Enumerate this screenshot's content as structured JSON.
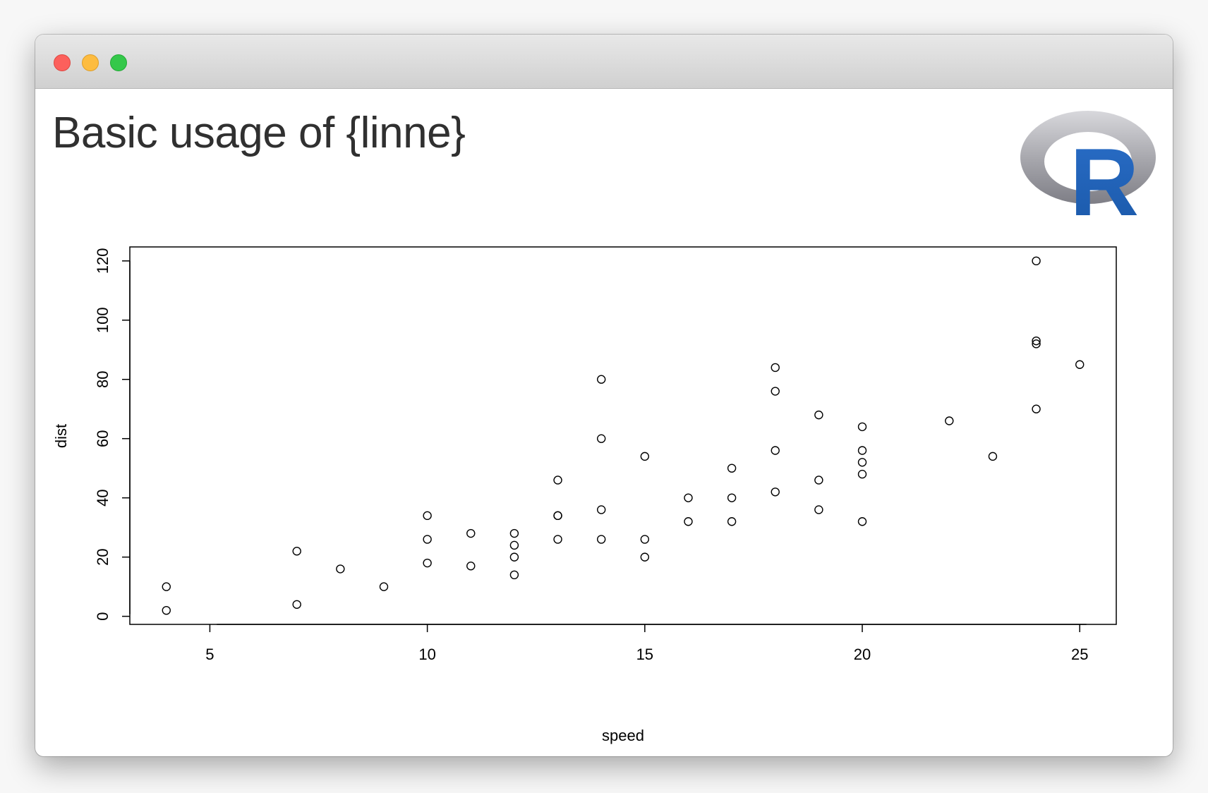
{
  "window": {
    "title": "Basic usage of {linne}",
    "logo": {
      "icon": "r-logo-icon",
      "text": "R",
      "colors": {
        "ring": "#a0a0a6",
        "letter": "#1f62b8"
      }
    },
    "traffic_lights": {
      "close": "#fc605c",
      "minimize": "#fdbc40",
      "maximize": "#34c84a"
    }
  },
  "chart_data": {
    "type": "scatter",
    "title": "",
    "xlabel": "speed",
    "ylabel": "dist",
    "xlim": [
      3.16,
      25.84
    ],
    "ylim": [
      -2.72,
      124.72
    ],
    "xticks": [
      5,
      10,
      15,
      20,
      25
    ],
    "yticks": [
      0,
      20,
      40,
      60,
      80,
      100,
      120
    ],
    "grid": false,
    "marker": "open-circle",
    "points": [
      [
        4,
        2
      ],
      [
        4,
        10
      ],
      [
        7,
        4
      ],
      [
        7,
        22
      ],
      [
        8,
        16
      ],
      [
        9,
        10
      ],
      [
        10,
        18
      ],
      [
        10,
        26
      ],
      [
        10,
        34
      ],
      [
        11,
        17
      ],
      [
        11,
        28
      ],
      [
        12,
        14
      ],
      [
        12,
        20
      ],
      [
        12,
        24
      ],
      [
        12,
        28
      ],
      [
        13,
        26
      ],
      [
        13,
        34
      ],
      [
        13,
        34
      ],
      [
        13,
        46
      ],
      [
        14,
        26
      ],
      [
        14,
        36
      ],
      [
        14,
        60
      ],
      [
        14,
        80
      ],
      [
        15,
        20
      ],
      [
        15,
        26
      ],
      [
        15,
        54
      ],
      [
        16,
        32
      ],
      [
        16,
        40
      ],
      [
        17,
        32
      ],
      [
        17,
        40
      ],
      [
        17,
        50
      ],
      [
        18,
        42
      ],
      [
        18,
        56
      ],
      [
        18,
        76
      ],
      [
        18,
        84
      ],
      [
        19,
        36
      ],
      [
        19,
        46
      ],
      [
        19,
        68
      ],
      [
        20,
        32
      ],
      [
        20,
        48
      ],
      [
        20,
        52
      ],
      [
        20,
        56
      ],
      [
        20,
        64
      ],
      [
        22,
        66
      ],
      [
        23,
        54
      ],
      [
        24,
        70
      ],
      [
        24,
        92
      ],
      [
        24,
        93
      ],
      [
        24,
        120
      ],
      [
        25,
        85
      ]
    ]
  }
}
